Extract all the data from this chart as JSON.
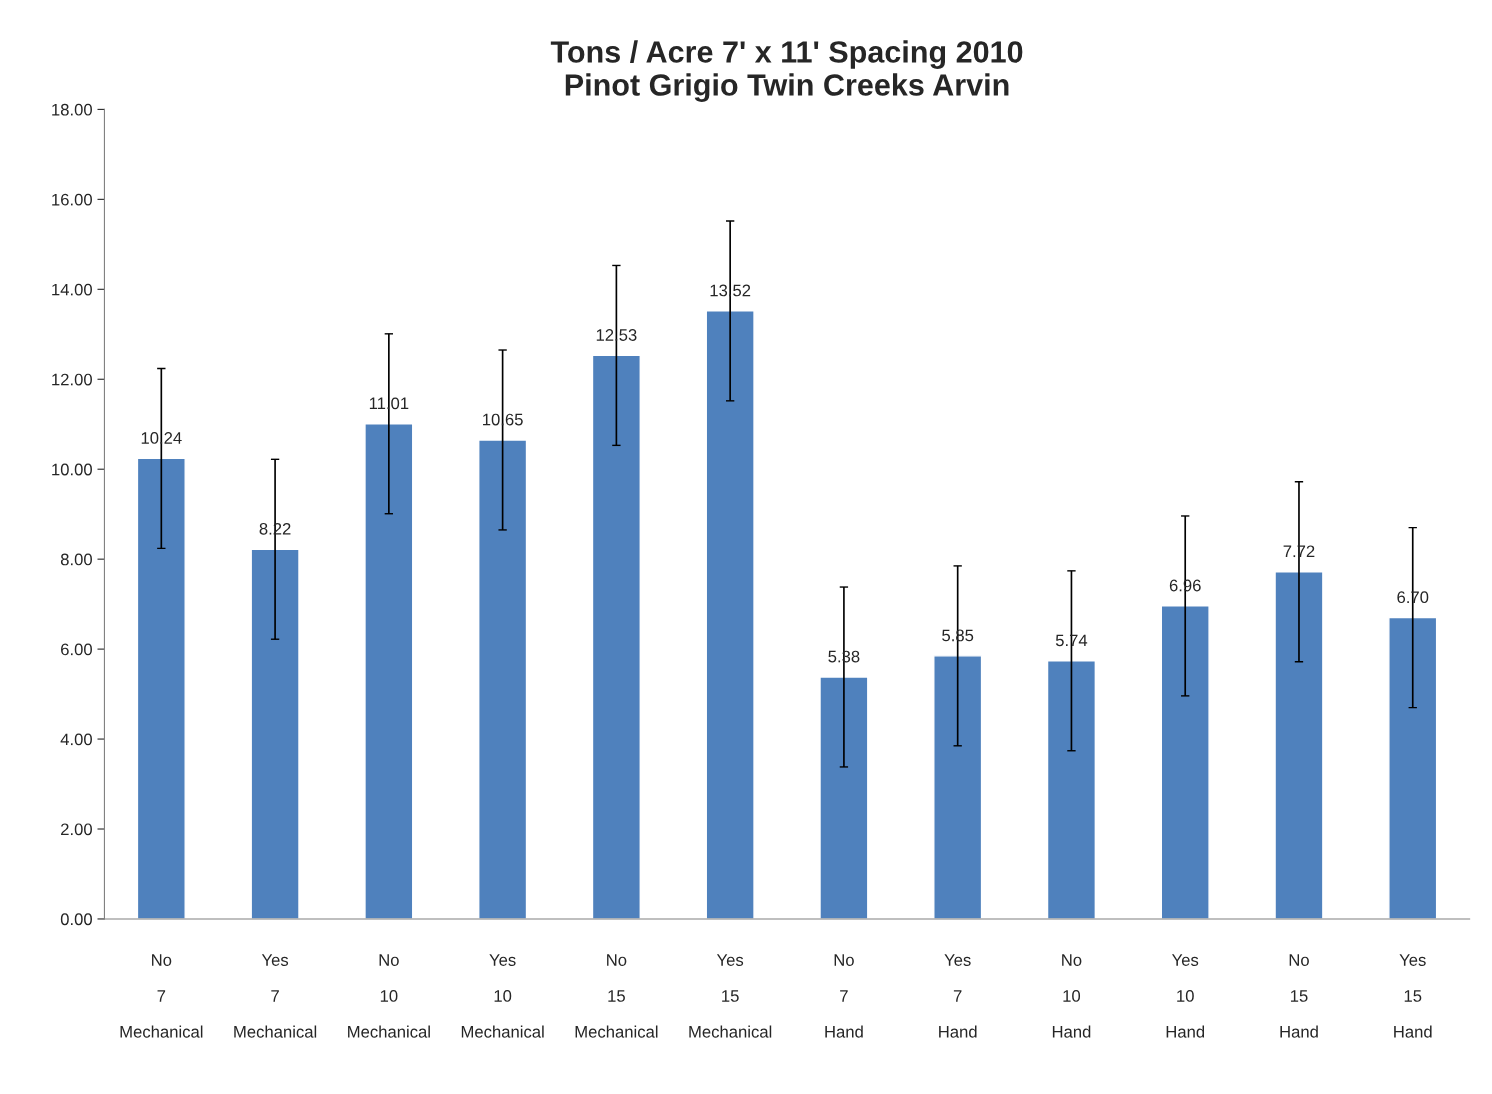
{
  "chart_data": {
    "type": "bar",
    "title": "Tons / Acre 7' x 11' Spacing 2010\nPinot Grigio Twin Creeks Arvin",
    "categories": [
      "No\n\n7\n\nMechanical",
      "Yes\n\n7\n\nMechanical",
      "No\n\n10\n\nMechanical",
      "Yes\n\n10\n\nMechanical",
      "No\n\n15\n\nMechanical",
      "Yes\n\n15\n\nMechanical",
      "No\n\n7\n\nHand",
      "Yes\n\n7\n\nHand",
      "No\n\n10\n\nHand",
      "Yes\n\n10\n\nHand",
      "No\n\n15\n\nHand",
      "Yes\n\n15\n\nHand"
    ],
    "values": [
      10.24,
      8.22,
      11.01,
      10.65,
      12.53,
      13.52,
      5.38,
      5.85,
      5.74,
      6.96,
      7.72,
      6.7
    ],
    "value_labels": [
      "10.24",
      "8.22",
      "11.01",
      "10.65",
      "12.53",
      "13.52",
      "5.38",
      "5.85",
      "5.74",
      "6.96",
      "7.72",
      "6.70"
    ],
    "errors": [
      2.0,
      2.0,
      2.0,
      2.0,
      2.0,
      2.0,
      2.0,
      2.0,
      2.0,
      2.0,
      2.0,
      2.0
    ],
    "color": "#4f81bd",
    "ylim": [
      0,
      18
    ],
    "yticks": [
      {
        "value": 0,
        "label": "0.00"
      },
      {
        "value": 2,
        "label": "2.00"
      },
      {
        "value": 4,
        "label": "4.00"
      },
      {
        "value": 6,
        "label": "6.00"
      },
      {
        "value": 8,
        "label": "8.00"
      },
      {
        "value": 10,
        "label": "10.00"
      },
      {
        "value": 12,
        "label": "12.00"
      },
      {
        "value": 14,
        "label": "14.00"
      },
      {
        "value": 16,
        "label": "16.00"
      },
      {
        "value": 18,
        "label": "18.00"
      }
    ],
    "grid": false
  }
}
